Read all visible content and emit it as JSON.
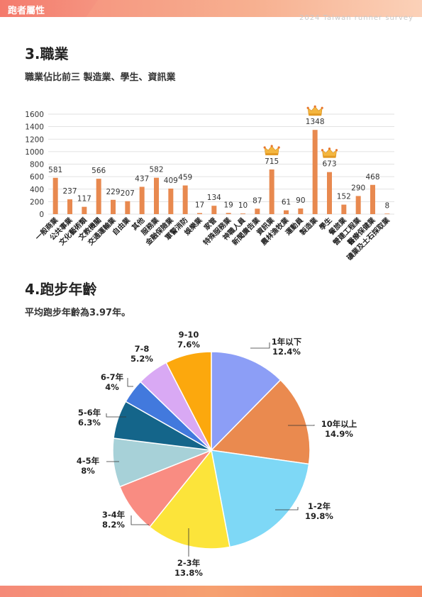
{
  "header": {
    "tab_label": "跑者屬性",
    "survey_label": "2024 Taiwan runner survey"
  },
  "section3": {
    "title": "3.職業",
    "subtitle": "職業佔比前三 製造業、學生、資訊業"
  },
  "section4": {
    "title": "4.跑步年齡",
    "subtitle": "平均跑步年齡為3.97年。"
  },
  "colors": {
    "bar": "#e8894f",
    "crown": "#f4b63f",
    "pie": [
      "#8c9ef6",
      "#ea8a4f",
      "#7ed8f6",
      "#fce43a",
      "#f98c82",
      "#a7d1d8",
      "#14658a",
      "#4279dd",
      "#d9a9f4",
      "#fca80d"
    ]
  },
  "chart_data": [
    {
      "type": "bar",
      "categories": [
        "一般商業",
        "公共事業",
        "文化藝術類",
        "文教機關",
        "交通運輸業",
        "自由業",
        "其他",
        "服務業",
        "金融保險業",
        "軍警消防",
        "娛樂業",
        "家管",
        "特殊服務業",
        "神職人員",
        "新聞廣告業",
        "資訊業",
        "農林漁牧業",
        "運動員",
        "製造業",
        "學生",
        "餐旅業",
        "營建工程業",
        "醫療保健業",
        "礦業及土石採取業"
      ],
      "values": [
        581,
        237,
        117,
        566,
        229,
        207,
        437,
        582,
        409,
        459,
        17,
        134,
        19,
        10,
        87,
        715,
        61,
        90,
        1348,
        673,
        152,
        290,
        468,
        8
      ],
      "yticks": [
        0,
        200,
        400,
        600,
        800,
        1000,
        1200,
        1400,
        1600
      ],
      "ylim": [
        0,
        1600
      ],
      "grid": true,
      "top3": [
        18,
        19,
        15
      ]
    },
    {
      "type": "pie",
      "slices": [
        {
          "label": "1年以下",
          "percent": "12.4%",
          "value": 12.4
        },
        {
          "label": "10年以上",
          "percent": "14.9%",
          "value": 14.9
        },
        {
          "label": "1-2年",
          "percent": "19.8%",
          "value": 19.8
        },
        {
          "label": "2-3年",
          "percent": "13.8%",
          "value": 13.8
        },
        {
          "label": "3-4年",
          "percent": "8.2%",
          "value": 8.2
        },
        {
          "label": "4-5年",
          "percent": "8%",
          "value": 8.0
        },
        {
          "label": "5-6年",
          "percent": "6.3%",
          "value": 6.3
        },
        {
          "label": "6-7年",
          "percent": "4%",
          "value": 4.0
        },
        {
          "label": "7-8",
          "percent": "5.2%",
          "value": 5.2
        },
        {
          "label": "9-10",
          "percent": "7.6%",
          "value": 7.6
        }
      ]
    }
  ]
}
